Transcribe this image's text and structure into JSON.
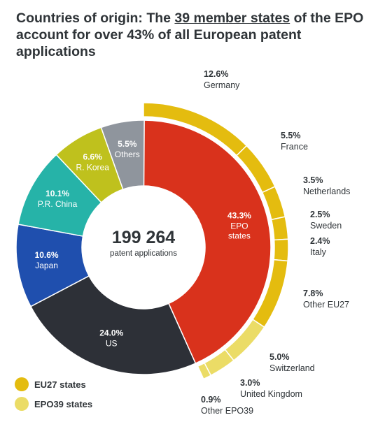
{
  "title": {
    "bold": "Countries of origin:",
    "pre": "The",
    "link": "39 member states",
    "post": "of the EPO account for over 43% of all European patent applications"
  },
  "center": {
    "value": "199 264",
    "label": "patent applications"
  },
  "colors": {
    "epo": "#d9321c",
    "us": "#2d3037",
    "japan": "#1f4fae",
    "china": "#26b3a8",
    "korea": "#bfc11d",
    "others": "#8f959d",
    "eu27": "#e4bc0f",
    "epo39": "#ebdc66"
  },
  "chart_data": {
    "type": "pie",
    "style": "donut",
    "total": "199 264",
    "inner_ring": [
      {
        "value": "43.3%",
        "line1": "EPO",
        "line2": "states",
        "color_key": "epo"
      },
      {
        "value": "24.0%",
        "line1": "US",
        "line2": "",
        "color_key": "us"
      },
      {
        "value": "10.6%",
        "line1": "Japan",
        "line2": "",
        "color_key": "japan"
      },
      {
        "value": "10.1%",
        "line1": "P.R. China",
        "line2": "",
        "color_key": "china"
      },
      {
        "value": "6.6%",
        "line1": "R. Korea",
        "line2": "",
        "color_key": "korea"
      },
      {
        "value": "5.5%",
        "line1": "Others",
        "line2": "",
        "color_key": "others"
      }
    ],
    "outer_ring": [
      {
        "value": "12.6%",
        "label": "Germany",
        "group": "eu27"
      },
      {
        "value": "5.5%",
        "label": "France",
        "group": "eu27"
      },
      {
        "value": "3.5%",
        "label": "Netherlands",
        "group": "eu27"
      },
      {
        "value": "2.5%",
        "label": "Sweden",
        "group": "eu27"
      },
      {
        "value": "2.4%",
        "label": "Italy",
        "group": "eu27"
      },
      {
        "value": "7.8%",
        "label": "Other EU27",
        "group": "eu27"
      },
      {
        "value": "5.0%",
        "label": "Switzerland",
        "group": "epo39"
      },
      {
        "value": "3.0%",
        "label": "United Kingdom",
        "group": "epo39"
      },
      {
        "value": "0.9%",
        "label": "Other EPO39",
        "group": "epo39"
      }
    ]
  },
  "legend": [
    {
      "label": "EU27 states",
      "color_key": "eu27"
    },
    {
      "label": "EPO39 states",
      "color_key": "epo39"
    }
  ]
}
